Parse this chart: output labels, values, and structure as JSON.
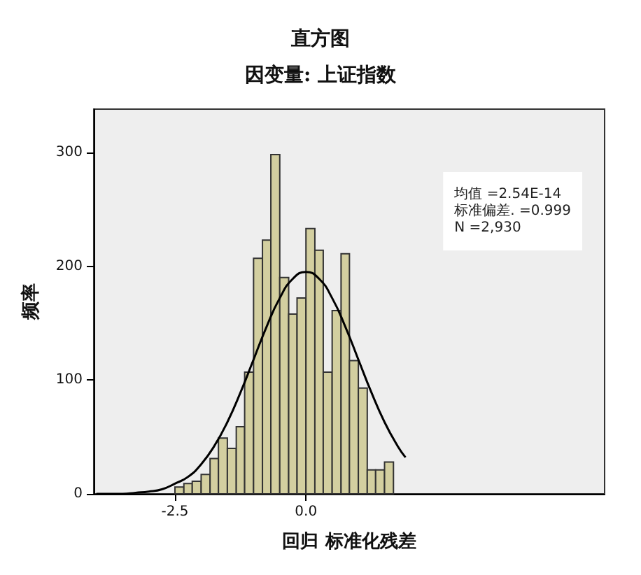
{
  "chart_data": {
    "type": "histogram",
    "title": "直方图",
    "subtitle": "因变量: 上证指数",
    "xlabel": "回归 标准化残差",
    "ylabel": "频率",
    "bins": [
      -2.5,
      -2.33,
      -2.17,
      -2.0,
      -1.83,
      -1.67,
      -1.5,
      -1.33,
      -1.17,
      -1.0,
      -0.83,
      -0.67,
      -0.5,
      -0.33,
      -0.17,
      0.0,
      0.17,
      0.33,
      0.5,
      0.67,
      0.83,
      1.0,
      1.17,
      1.33,
      1.5,
      1.67
    ],
    "values": [
      6,
      9,
      11,
      17,
      31,
      49,
      40,
      59,
      107,
      207,
      223,
      298,
      190,
      158,
      172,
      233,
      214,
      107,
      161,
      211,
      117,
      93,
      21,
      21,
      28
    ],
    "color": "#d3cfa0",
    "series": [
      {
        "type": "line",
        "color": "#000000",
        "x": [
          -4,
          -3.75,
          -3.5,
          -3.25,
          -3,
          -2.75,
          -2.5,
          -2.25,
          -2,
          -1.75,
          -1.5,
          -1.25,
          -1,
          -0.75,
          -0.5,
          -0.25,
          0,
          0.25,
          0.5,
          0.75,
          1,
          1.25,
          1.5,
          1.75,
          1.9
        ],
        "values": [
          0,
          0,
          0,
          1,
          2,
          4,
          9,
          15,
          26,
          42,
          63,
          89,
          118,
          147,
          172,
          189,
          195,
          189,
          172,
          147,
          118,
          89,
          63,
          42,
          32
        ]
      }
    ],
    "xlim": [
      -4.05,
      5.7
    ],
    "xticks": [
      {
        "value": -2.5,
        "label": "-2.5"
      },
      {
        "value": 0,
        "label": "0.0"
      }
    ],
    "ylim": [
      0,
      338
    ],
    "yticks": [
      0,
      100,
      200,
      300
    ],
    "annotations": [
      "均值 =2.54E-14\n标准偏差. =0.999\nN =2,930"
    ],
    "marker": "none",
    "line_style": "solid"
  }
}
